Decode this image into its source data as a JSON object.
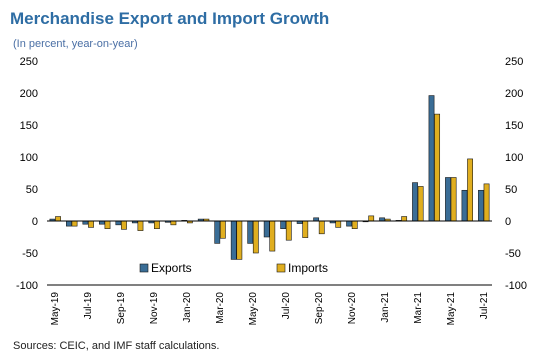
{
  "title": "Merchandise Export and Import Growth",
  "subtitle": "(In percent, year-on-year)",
  "source": "Sources: CEIC, and IMF staff calculations.",
  "colors": {
    "exports": "#3a6d96",
    "imports": "#e0ae1f",
    "outline": "#1a1a1a",
    "zero_line": "#000000",
    "title": "#2e6da4"
  },
  "chart_data": {
    "type": "bar",
    "title": "Merchandise Export and Import Growth",
    "subtitle": "(In percent, year-on-year)",
    "ylim": [
      -100,
      250
    ],
    "yticks": [
      "250",
      "200",
      "150",
      "100",
      "50",
      "0",
      "-50",
      "-100"
    ],
    "y_axis_both_sides": true,
    "grid": false,
    "legend_position": "lower-middle",
    "x_tick_labels": [
      "May-19",
      "Jul-19",
      "Sep-19",
      "Nov-19",
      "Jan-20",
      "Mar-20",
      "May-20",
      "Jul-20",
      "Sep-20",
      "Nov-20",
      "Jan-21",
      "Mar-21",
      "May-21",
      "Jul-21"
    ],
    "categories": [
      "May-19",
      "Jun-19",
      "Jul-19",
      "Aug-19",
      "Sep-19",
      "Oct-19",
      "Nov-19",
      "Dec-19",
      "Jan-20",
      "Feb-20",
      "Mar-20",
      "Apr-20",
      "May-20",
      "Jun-20",
      "Jul-20",
      "Aug-20",
      "Sep-20",
      "Oct-20",
      "Nov-20",
      "Dec-20",
      "Jan-21",
      "Feb-21",
      "Mar-21",
      "Apr-21",
      "May-21",
      "Jun-21",
      "Jul-21"
    ],
    "series": [
      {
        "name": "Exports",
        "values": [
          3,
          -8,
          -5,
          -5,
          -6,
          -3,
          -3,
          -2,
          1,
          3,
          -35,
          -60,
          -35,
          -25,
          -12,
          -4,
          5,
          -3,
          -8,
          0,
          5,
          1,
          60,
          196,
          68,
          48,
          48
        ]
      },
      {
        "name": "Imports",
        "values": [
          7,
          -8,
          -10,
          -12,
          -13,
          -15,
          -12,
          -6,
          -3,
          3,
          -27,
          -60,
          -50,
          -47,
          -30,
          -26,
          -20,
          -10,
          -12,
          8,
          3,
          7,
          54,
          167,
          68,
          97,
          58
        ]
      }
    ]
  }
}
